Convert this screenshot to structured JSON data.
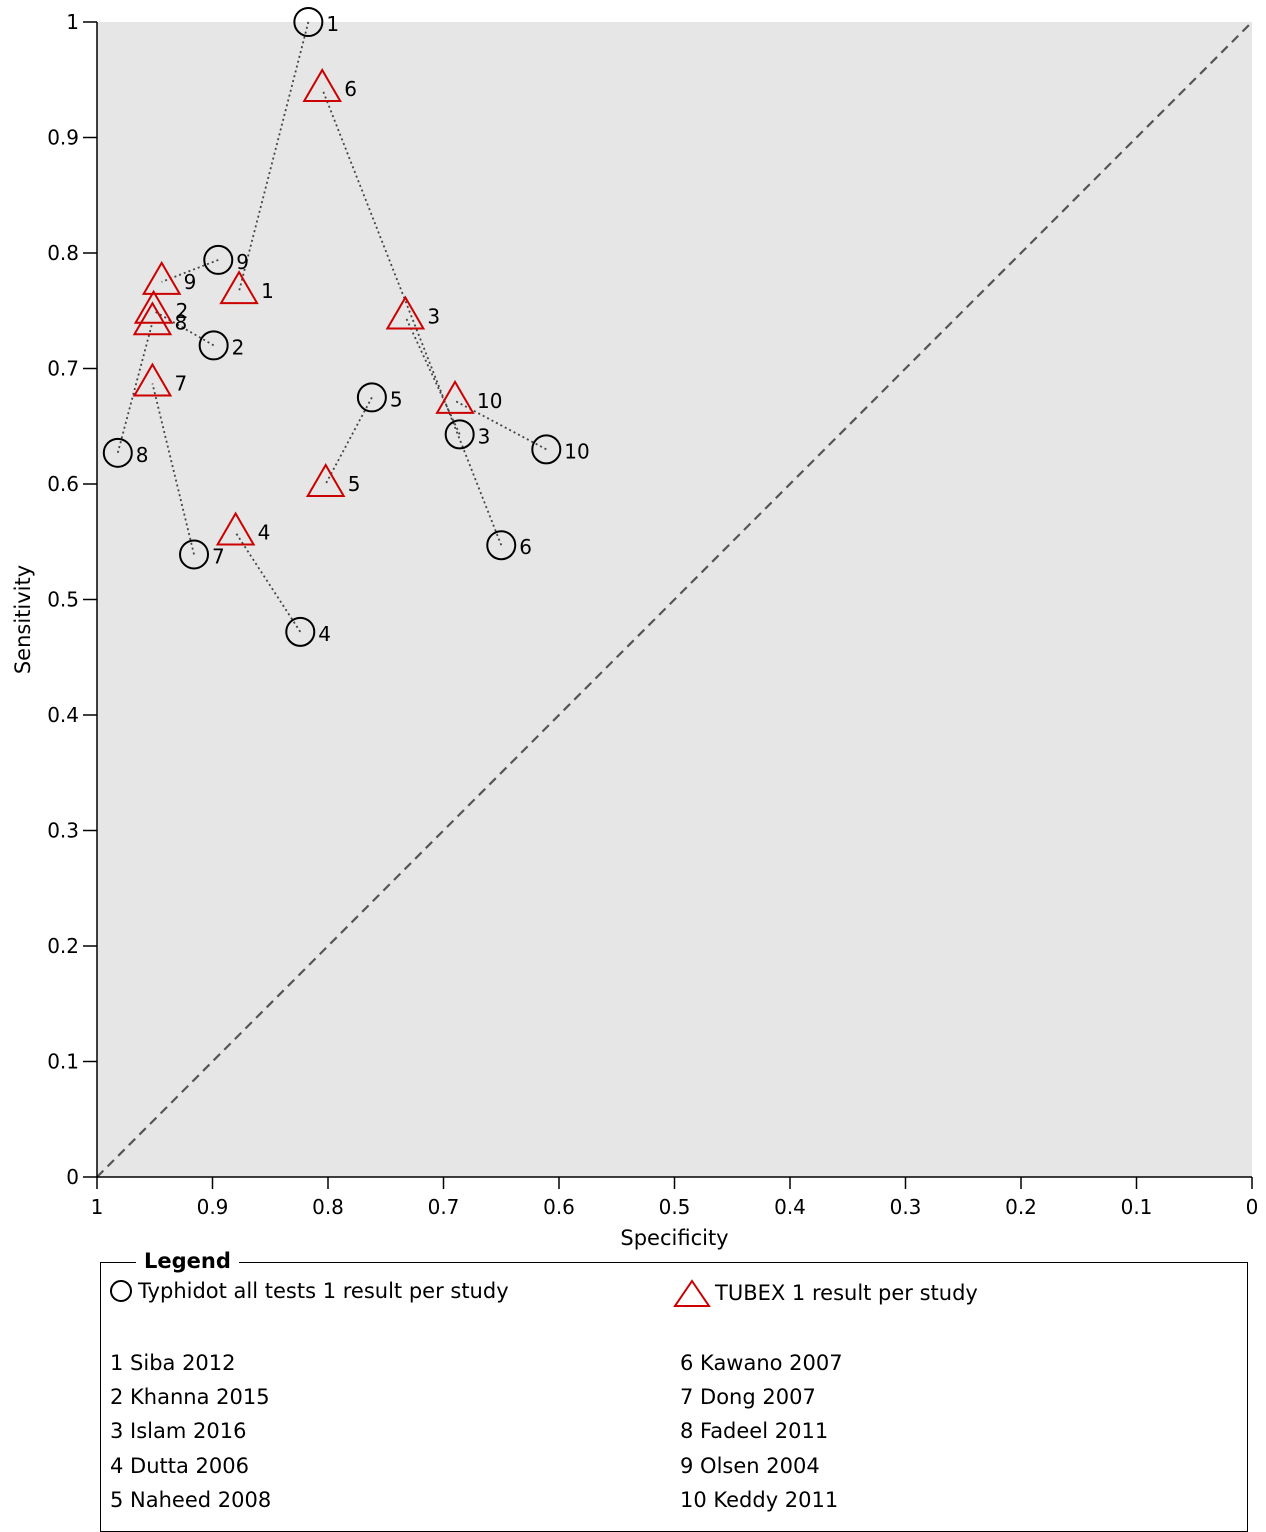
{
  "chart_data": {
    "type": "scatter",
    "title": "",
    "xlabel": "Specificity",
    "ylabel": "Sensitivity",
    "xlim": [
      1,
      0
    ],
    "ylim": [
      0,
      1
    ],
    "x_ticks": [
      "1",
      "0.9",
      "0.8",
      "0.7",
      "0.6",
      "0.5",
      "0.4",
      "0.3",
      "0.2",
      "0.1",
      "0"
    ],
    "y_ticks": [
      "0",
      "0.1",
      "0.2",
      "0.3",
      "0.4",
      "0.5",
      "0.6",
      "0.7",
      "0.8",
      "0.9",
      "1"
    ],
    "diagonal_reference_line": true,
    "series": [
      {
        "name": "Typhidot all tests 1 result per study",
        "marker": "circle",
        "color": "#000000",
        "points": [
          {
            "study": "1",
            "specificity": 0.817,
            "sensitivity": 1.0
          },
          {
            "study": "2",
            "specificity": 0.899,
            "sensitivity": 0.72
          },
          {
            "study": "3",
            "specificity": 0.686,
            "sensitivity": 0.643
          },
          {
            "study": "4",
            "specificity": 0.824,
            "sensitivity": 0.472
          },
          {
            "study": "5",
            "specificity": 0.762,
            "sensitivity": 0.675
          },
          {
            "study": "6",
            "specificity": 0.65,
            "sensitivity": 0.547
          },
          {
            "study": "7",
            "specificity": 0.916,
            "sensitivity": 0.539
          },
          {
            "study": "8",
            "specificity": 0.982,
            "sensitivity": 0.627
          },
          {
            "study": "9",
            "specificity": 0.895,
            "sensitivity": 0.794
          },
          {
            "study": "10",
            "specificity": 0.611,
            "sensitivity": 0.63
          }
        ]
      },
      {
        "name": "TUBEX 1 result per study",
        "marker": "triangle",
        "color": "#cc0000",
        "points": [
          {
            "study": "1",
            "specificity": 0.877,
            "sensitivity": 0.767
          },
          {
            "study": "2",
            "specificity": 0.951,
            "sensitivity": 0.75
          },
          {
            "study": "3",
            "specificity": 0.733,
            "sensitivity": 0.745
          },
          {
            "study": "4",
            "specificity": 0.88,
            "sensitivity": 0.558
          },
          {
            "study": "5",
            "specificity": 0.802,
            "sensitivity": 0.6
          },
          {
            "study": "6",
            "specificity": 0.805,
            "sensitivity": 0.942
          },
          {
            "study": "7",
            "specificity": 0.952,
            "sensitivity": 0.687
          },
          {
            "study": "8",
            "specificity": 0.952,
            "sensitivity": 0.74
          },
          {
            "study": "9",
            "specificity": 0.944,
            "sensitivity": 0.775
          },
          {
            "study": "10",
            "specificity": 0.69,
            "sensitivity": 0.672
          }
        ]
      }
    ],
    "label_offsets_note": ""
  },
  "legend": {
    "title": "Legend",
    "series_1": "Typhidot all tests 1 result per study",
    "series_2": "TUBEX 1 result per study",
    "studies_left": [
      "1 Siba 2012",
      "2 Khanna 2015",
      "3 Islam 2016",
      "4 Dutta 2006",
      "5 Naheed 2008"
    ],
    "studies_right": [
      "6 Kawano 2007",
      "7 Dong 2007",
      "8 Fadeel 2011",
      "9 Olsen 2004",
      "10 Keddy 2011"
    ]
  },
  "colors": {
    "plot_background": "#e6e6e6",
    "circle": "#000000",
    "triangle": "#cc0000",
    "diagonal": "#555555"
  }
}
